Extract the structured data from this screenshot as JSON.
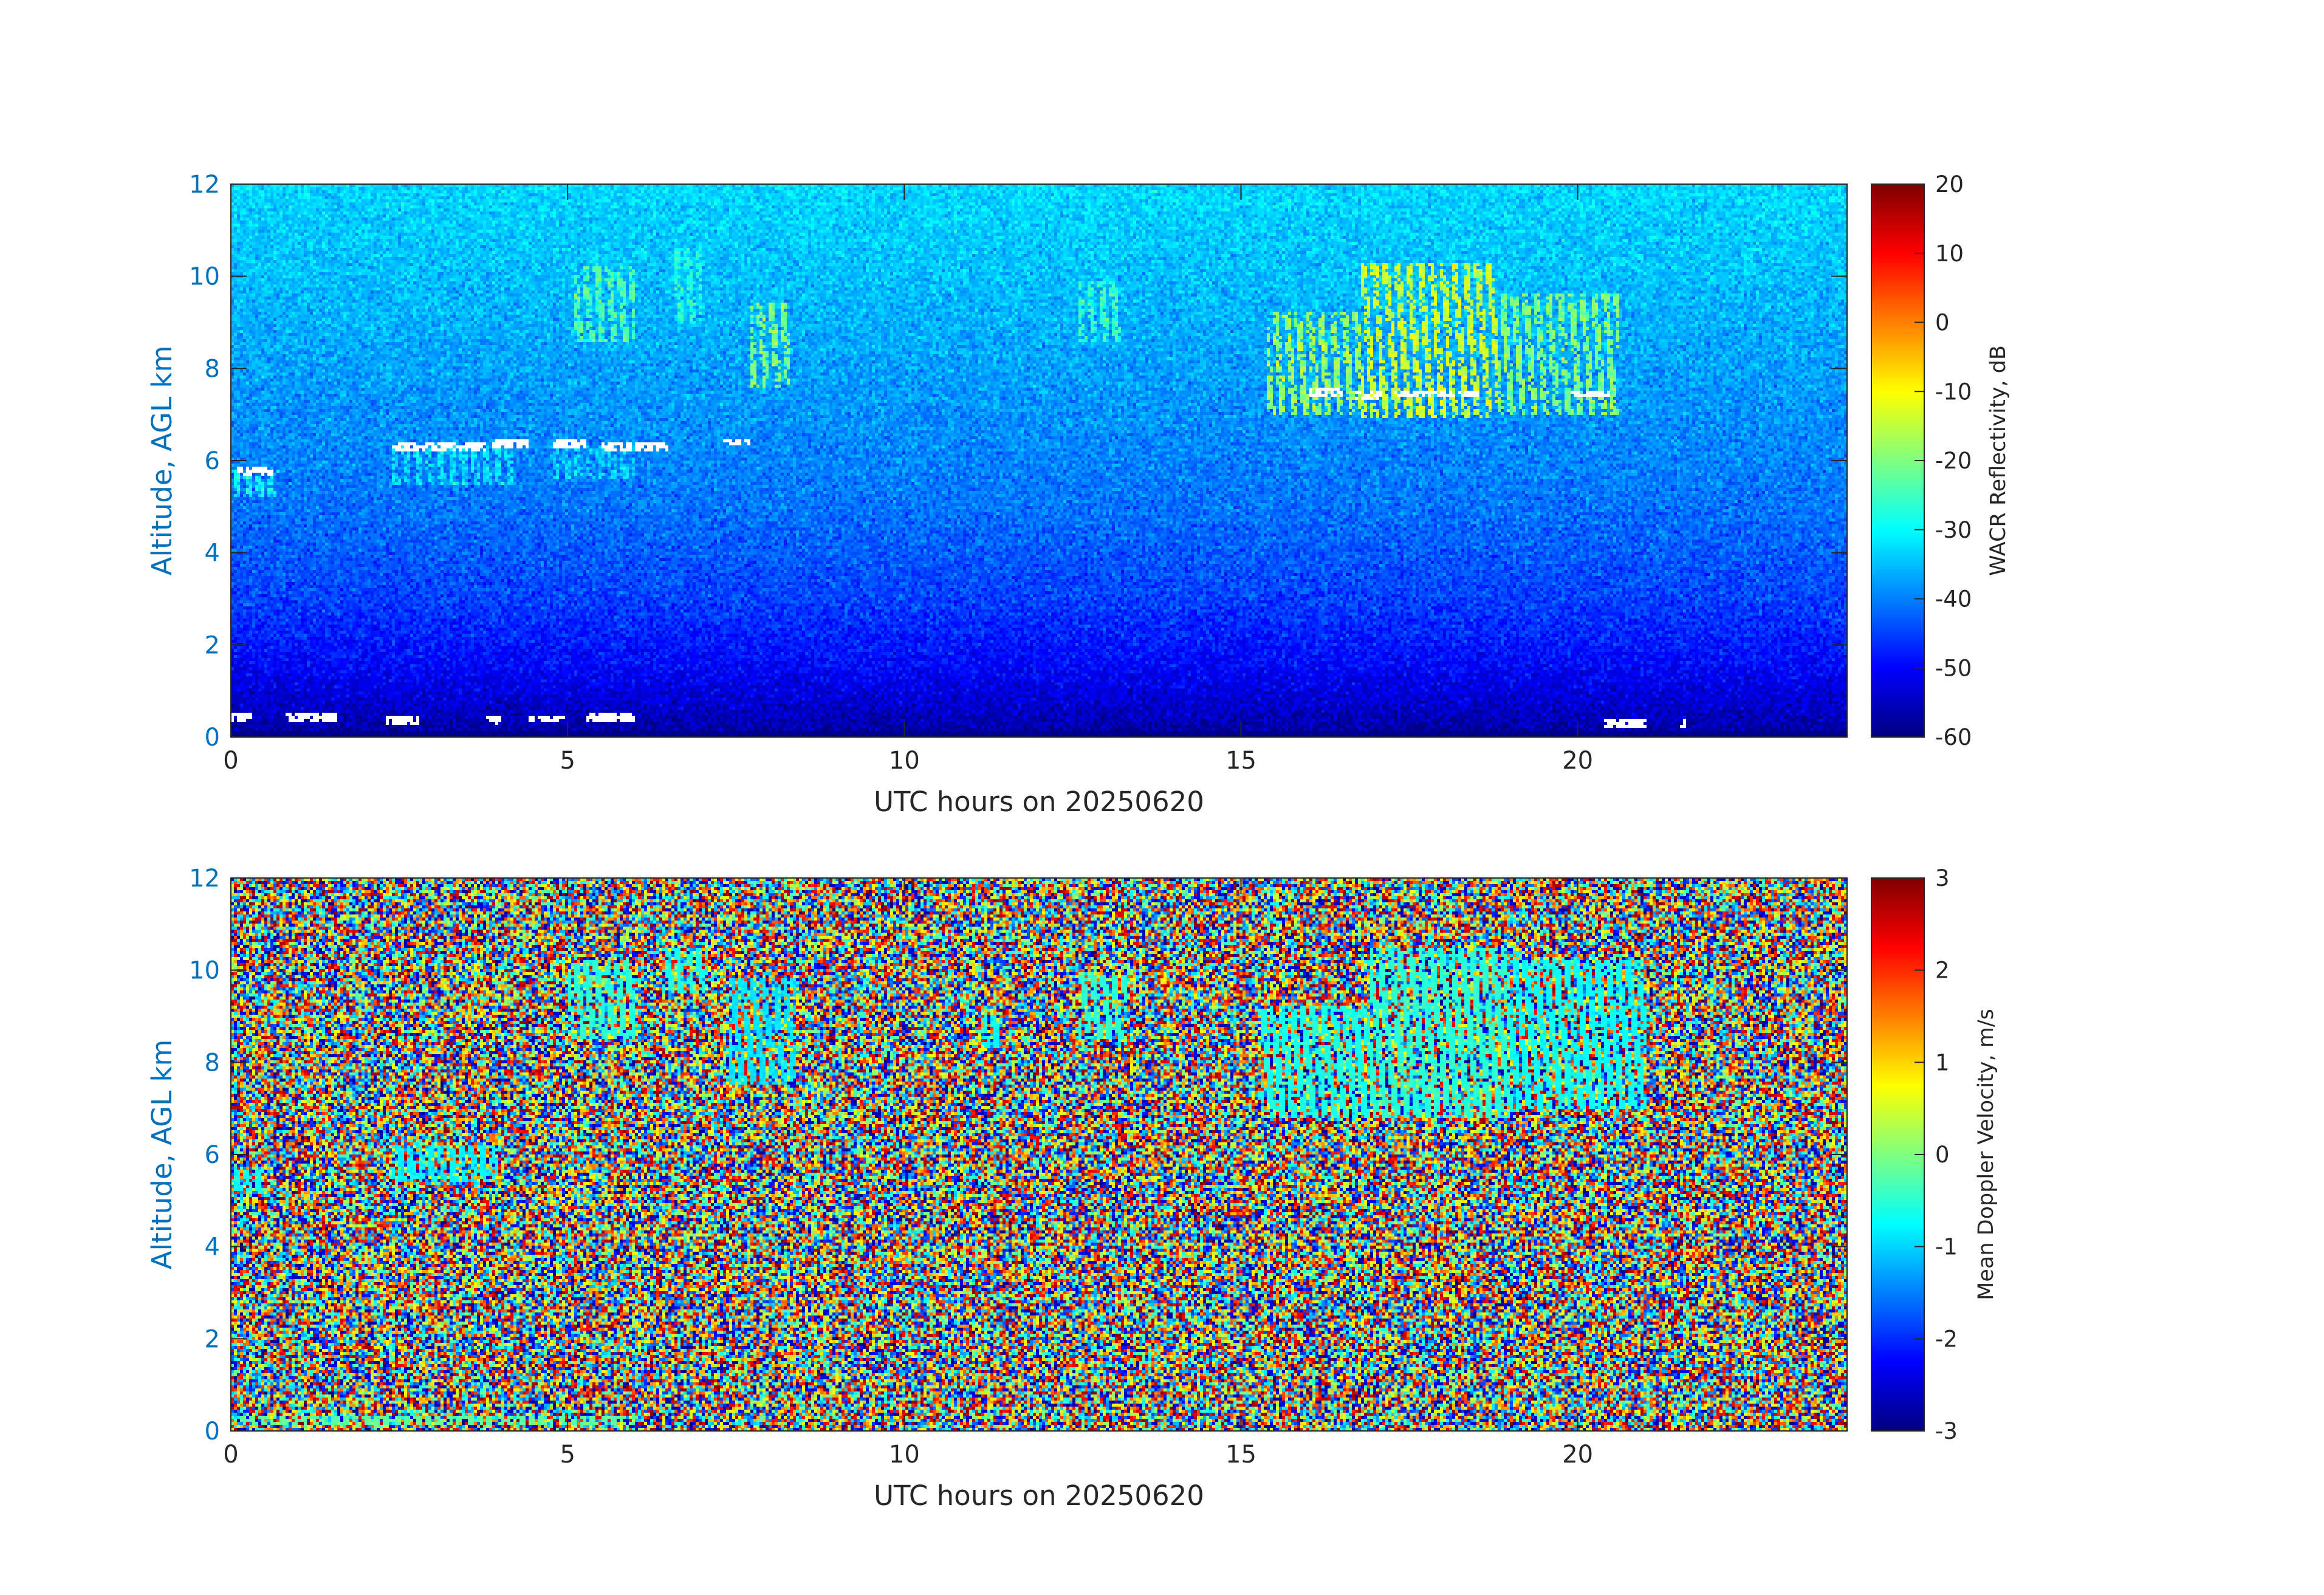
{
  "chart_data": [
    {
      "type": "heatmap",
      "panel": "top",
      "variable": "reflectivity",
      "xlabel": "UTC hours on 20250620",
      "ylabel": "Altitude, AGL km",
      "xlim": [
        0,
        24
      ],
      "ylim": [
        0,
        12
      ],
      "xticks": [
        0,
        5,
        10,
        15,
        20
      ],
      "yticks": [
        0,
        2,
        4,
        6,
        8,
        10,
        12
      ],
      "colorbar": {
        "label": "WACR Reflectivity, dB",
        "range": [
          -60,
          20
        ],
        "ticks": [
          20,
          10,
          0,
          -10,
          -20,
          -30,
          -40,
          -50,
          -60
        ],
        "colormap": "jet"
      },
      "background_gradient": [
        {
          "alt_km": 0.0,
          "dbz": -58
        },
        {
          "alt_km": 0.5,
          "dbz": -55
        },
        {
          "alt_km": 1.5,
          "dbz": -50
        },
        {
          "alt_km": 3.0,
          "dbz": -45
        },
        {
          "alt_km": 5.0,
          "dbz": -41
        },
        {
          "alt_km": 7.5,
          "dbz": -38
        },
        {
          "alt_km": 10.0,
          "dbz": -35
        },
        {
          "alt_km": 12.0,
          "dbz": -33
        }
      ],
      "features": [
        {
          "t0": 0.0,
          "t1": 0.7,
          "a0": 5.2,
          "a1": 5.8,
          "dbz": -30
        },
        {
          "t0": 2.4,
          "t1": 4.2,
          "a0": 5.5,
          "a1": 6.3,
          "dbz": -32
        },
        {
          "t0": 4.7,
          "t1": 6.0,
          "a0": 5.6,
          "a1": 6.3,
          "dbz": -33
        },
        {
          "t0": 5.1,
          "t1": 6.0,
          "a0": 8.6,
          "a1": 10.2,
          "dbz": -24
        },
        {
          "t0": 6.6,
          "t1": 7.0,
          "a0": 9.0,
          "a1": 10.6,
          "dbz": -27
        },
        {
          "t0": 7.7,
          "t1": 8.3,
          "a0": 7.6,
          "a1": 9.4,
          "dbz": -20
        },
        {
          "t0": 12.6,
          "t1": 13.2,
          "a0": 8.6,
          "a1": 9.9,
          "dbz": -26
        },
        {
          "t0": 15.4,
          "t1": 16.8,
          "a0": 7.0,
          "a1": 9.2,
          "dbz": -18
        },
        {
          "t0": 16.8,
          "t1": 18.8,
          "a0": 6.9,
          "a1": 10.3,
          "dbz": -14
        },
        {
          "t0": 18.8,
          "t1": 20.6,
          "a0": 7.0,
          "a1": 9.6,
          "dbz": -20
        }
      ],
      "white_gaps": [
        {
          "t": [
            0.1,
            0.65
          ],
          "alt_km": 5.75
        },
        {
          "t": [
            2.4,
            3.8
          ],
          "alt_km": 6.3
        },
        {
          "t": [
            3.9,
            4.4
          ],
          "alt_km": 6.35
        },
        {
          "t": [
            4.8,
            5.3
          ],
          "alt_km": 6.35
        },
        {
          "t": [
            5.5,
            6.5
          ],
          "alt_km": 6.3
        },
        {
          "t": [
            7.3,
            7.7
          ],
          "alt_km": 6.4
        },
        {
          "t": [
            16.0,
            16.5
          ],
          "alt_km": 7.5
        },
        {
          "t": [
            16.7,
            17.1
          ],
          "alt_km": 7.4
        },
        {
          "t": [
            17.3,
            18.6
          ],
          "alt_km": 7.45
        },
        {
          "t": [
            19.9,
            20.5
          ],
          "alt_km": 7.45
        },
        {
          "t": [
            0.0,
            0.3
          ],
          "alt_km": 0.45
        },
        {
          "t": [
            0.8,
            1.6
          ],
          "alt_km": 0.45
        },
        {
          "t": [
            2.3,
            2.8
          ],
          "alt_km": 0.38
        },
        {
          "t": [
            3.8,
            4.0
          ],
          "alt_km": 0.35
        },
        {
          "t": [
            4.4,
            5.0
          ],
          "alt_km": 0.4
        },
        {
          "t": [
            5.3,
            6.0
          ],
          "alt_km": 0.42
        },
        {
          "t": [
            20.4,
            21.0
          ],
          "alt_km": 0.3
        },
        {
          "t": [
            21.5,
            21.6
          ],
          "alt_km": 0.32
        }
      ]
    },
    {
      "type": "heatmap",
      "panel": "bottom",
      "variable": "velocity",
      "xlabel": "UTC hours on 20250620",
      "ylabel": "Altitude, AGL km",
      "xlim": [
        0,
        24
      ],
      "ylim": [
        0,
        12
      ],
      "xticks": [
        0,
        5,
        10,
        15,
        20
      ],
      "yticks": [
        0,
        2,
        4,
        6,
        8,
        10,
        12
      ],
      "colorbar": {
        "label": "Mean Doppler Velocity, m/s",
        "range": [
          -3,
          3
        ],
        "ticks": [
          3,
          2,
          1,
          0,
          -1,
          -2,
          -3
        ],
        "colormap": "jet"
      },
      "background": "random noise spanning -3 to 3",
      "features": [
        {
          "t0": 0.0,
          "t1": 0.5,
          "a0": 5.2,
          "a1": 5.7,
          "v": -0.7
        },
        {
          "t0": 2.4,
          "t1": 4.0,
          "a0": 5.4,
          "a1": 6.2,
          "v": -0.8
        },
        {
          "t0": 5.0,
          "t1": 6.0,
          "a0": 8.5,
          "a1": 10.2,
          "v": -0.5
        },
        {
          "t0": 6.4,
          "t1": 7.1,
          "a0": 9.5,
          "a1": 10.5,
          "v": -0.6
        },
        {
          "t0": 7.4,
          "t1": 8.4,
          "a0": 7.5,
          "a1": 9.8,
          "v": -0.9
        },
        {
          "t0": 11.2,
          "t1": 11.4,
          "a0": 8.3,
          "a1": 9.0,
          "v": -0.7
        },
        {
          "t0": 12.6,
          "t1": 13.3,
          "a0": 8.5,
          "a1": 9.9,
          "v": -0.5
        },
        {
          "t0": 15.3,
          "t1": 16.9,
          "a0": 6.8,
          "a1": 9.2,
          "v": -0.6
        },
        {
          "t0": 16.9,
          "t1": 19.0,
          "a0": 6.8,
          "a1": 10.5,
          "v": -0.5
        },
        {
          "t0": 19.0,
          "t1": 21.0,
          "a0": 7.0,
          "a1": 10.2,
          "v": -0.7
        },
        {
          "t0": 0.0,
          "t1": 6.0,
          "a0": 0.1,
          "a1": 0.35,
          "v": -0.2
        }
      ]
    }
  ]
}
